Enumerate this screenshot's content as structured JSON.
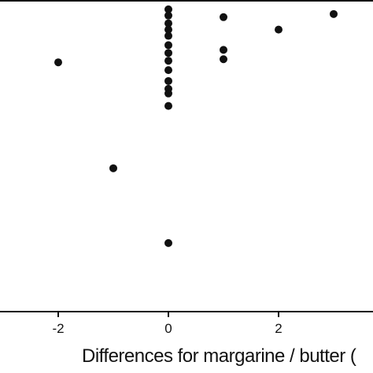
{
  "chart_data": {
    "type": "scatter",
    "title": "",
    "xlabel": "Differences for margarine / butter (",
    "ylabel": "",
    "xlim": [
      -2.9,
      3.7
    ],
    "ylim": [
      -1,
      1
    ],
    "x_ticks": [
      -2,
      0,
      2
    ],
    "x_tick_labels": [
      "-2",
      "0",
      "2"
    ],
    "grid": false,
    "legend": "none",
    "marker_color": "#111111",
    "series": [
      {
        "points": [
          {
            "x": -2,
            "y": 0.6
          },
          {
            "x": -1,
            "y": -0.08
          },
          {
            "x": 0,
            "y": 0.94
          },
          {
            "x": 0,
            "y": 0.9
          },
          {
            "x": 0,
            "y": 0.85
          },
          {
            "x": 0,
            "y": 0.81
          },
          {
            "x": 0,
            "y": 0.77
          },
          {
            "x": 0,
            "y": 0.71
          },
          {
            "x": 0,
            "y": 0.66
          },
          {
            "x": 0,
            "y": 0.61
          },
          {
            "x": 0,
            "y": 0.55
          },
          {
            "x": 0,
            "y": 0.48
          },
          {
            "x": 0,
            "y": 0.43
          },
          {
            "x": 0,
            "y": 0.4
          },
          {
            "x": 0,
            "y": 0.32
          },
          {
            "x": 0,
            "y": -0.56
          },
          {
            "x": 1,
            "y": 0.89
          },
          {
            "x": 1,
            "y": 0.68
          },
          {
            "x": 1,
            "y": 0.62
          },
          {
            "x": 2,
            "y": 0.81
          },
          {
            "x": 3,
            "y": 0.91
          }
        ]
      }
    ]
  }
}
